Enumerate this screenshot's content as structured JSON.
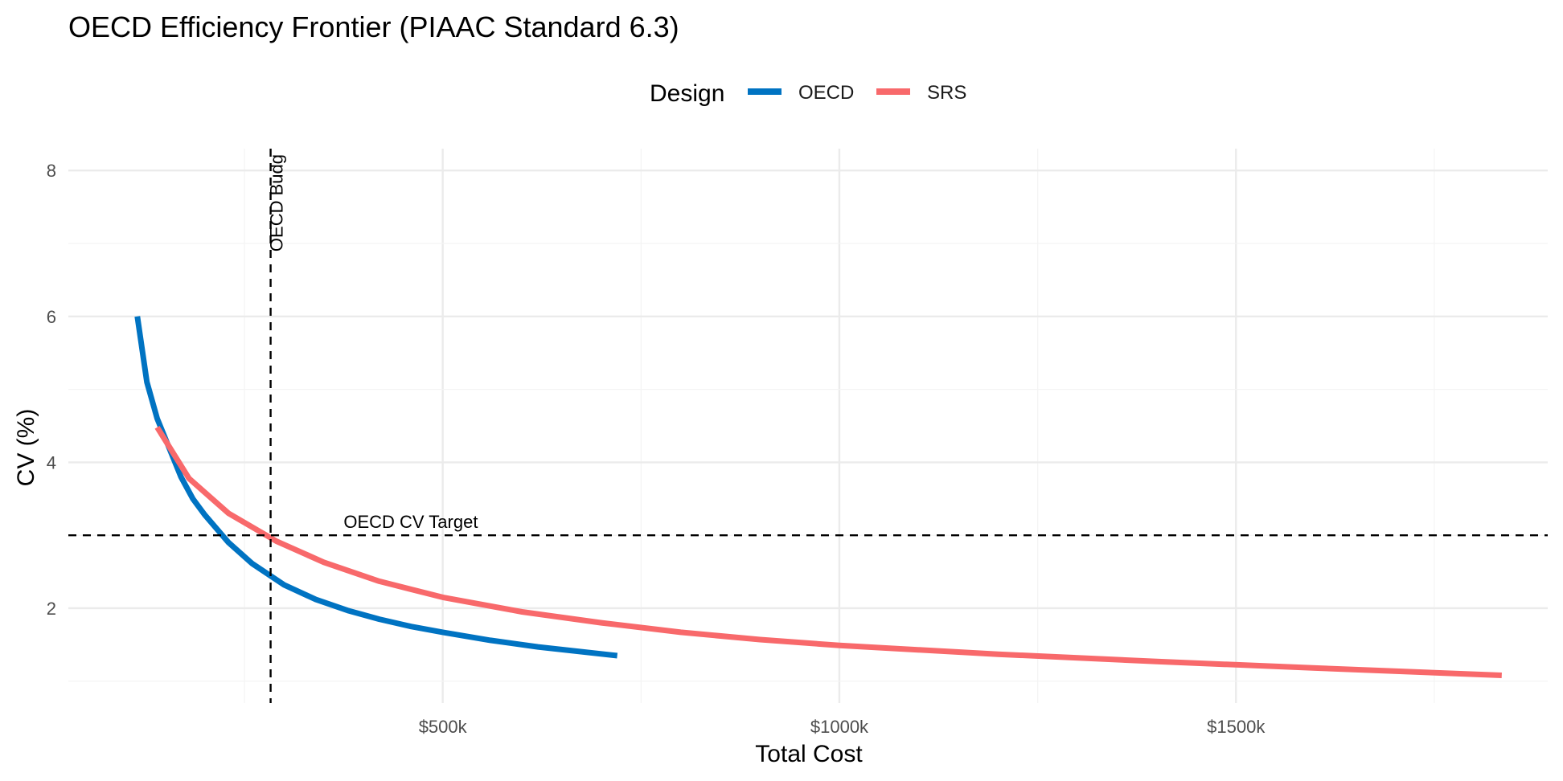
{
  "chart_data": {
    "type": "line",
    "title": "OECD Efficiency Frontier (PIAAC Standard 6.3)",
    "xlabel": "Total Cost",
    "ylabel": "CV (%)",
    "xlim": [
      28000,
      1893000
    ],
    "ylim": [
      0.7,
      8.3
    ],
    "x_ticks": [
      500000,
      1000000,
      1500000
    ],
    "x_tick_labels": [
      "$500k",
      "$1000k",
      "$1500k"
    ],
    "y_ticks": [
      2,
      4,
      6,
      8
    ],
    "y_tick_labels": [
      "2",
      "4",
      "6",
      "8"
    ],
    "grid": true,
    "legend": {
      "title": "Design",
      "position": "top",
      "entries": [
        {
          "name": "OECD",
          "color": "#0073C2"
        },
        {
          "name": "SRS",
          "color": "#F8696B"
        }
      ]
    },
    "series": [
      {
        "name": "OECD",
        "color": "#0073C2",
        "x": [
          115000,
          127000,
          140000,
          155000,
          170000,
          185000,
          200000,
          230000,
          260000,
          300000,
          340000,
          380000,
          420000,
          460000,
          500000,
          560000,
          620000,
          720000
        ],
        "y": [
          6.0,
          5.1,
          4.6,
          4.2,
          3.8,
          3.5,
          3.28,
          2.9,
          2.61,
          2.32,
          2.12,
          1.97,
          1.85,
          1.75,
          1.67,
          1.56,
          1.47,
          1.35
        ]
      },
      {
        "name": "SRS",
        "color": "#F8696B",
        "x": [
          140000,
          180000,
          230000,
          290000,
          350000,
          420000,
          500000,
          600000,
          700000,
          800000,
          900000,
          1000000,
          1200000,
          1400000,
          1600000,
          1835000
        ],
        "y": [
          4.48,
          3.78,
          3.3,
          2.92,
          2.63,
          2.37,
          2.15,
          1.95,
          1.8,
          1.67,
          1.57,
          1.49,
          1.37,
          1.27,
          1.18,
          1.08
        ]
      }
    ],
    "reference_lines": [
      {
        "orientation": "vertical",
        "value": 283000,
        "label": "OECD Budg",
        "style": "dashed"
      },
      {
        "orientation": "horizontal",
        "value": 3,
        "label": "OECD CV Target",
        "style": "dashed"
      }
    ]
  }
}
